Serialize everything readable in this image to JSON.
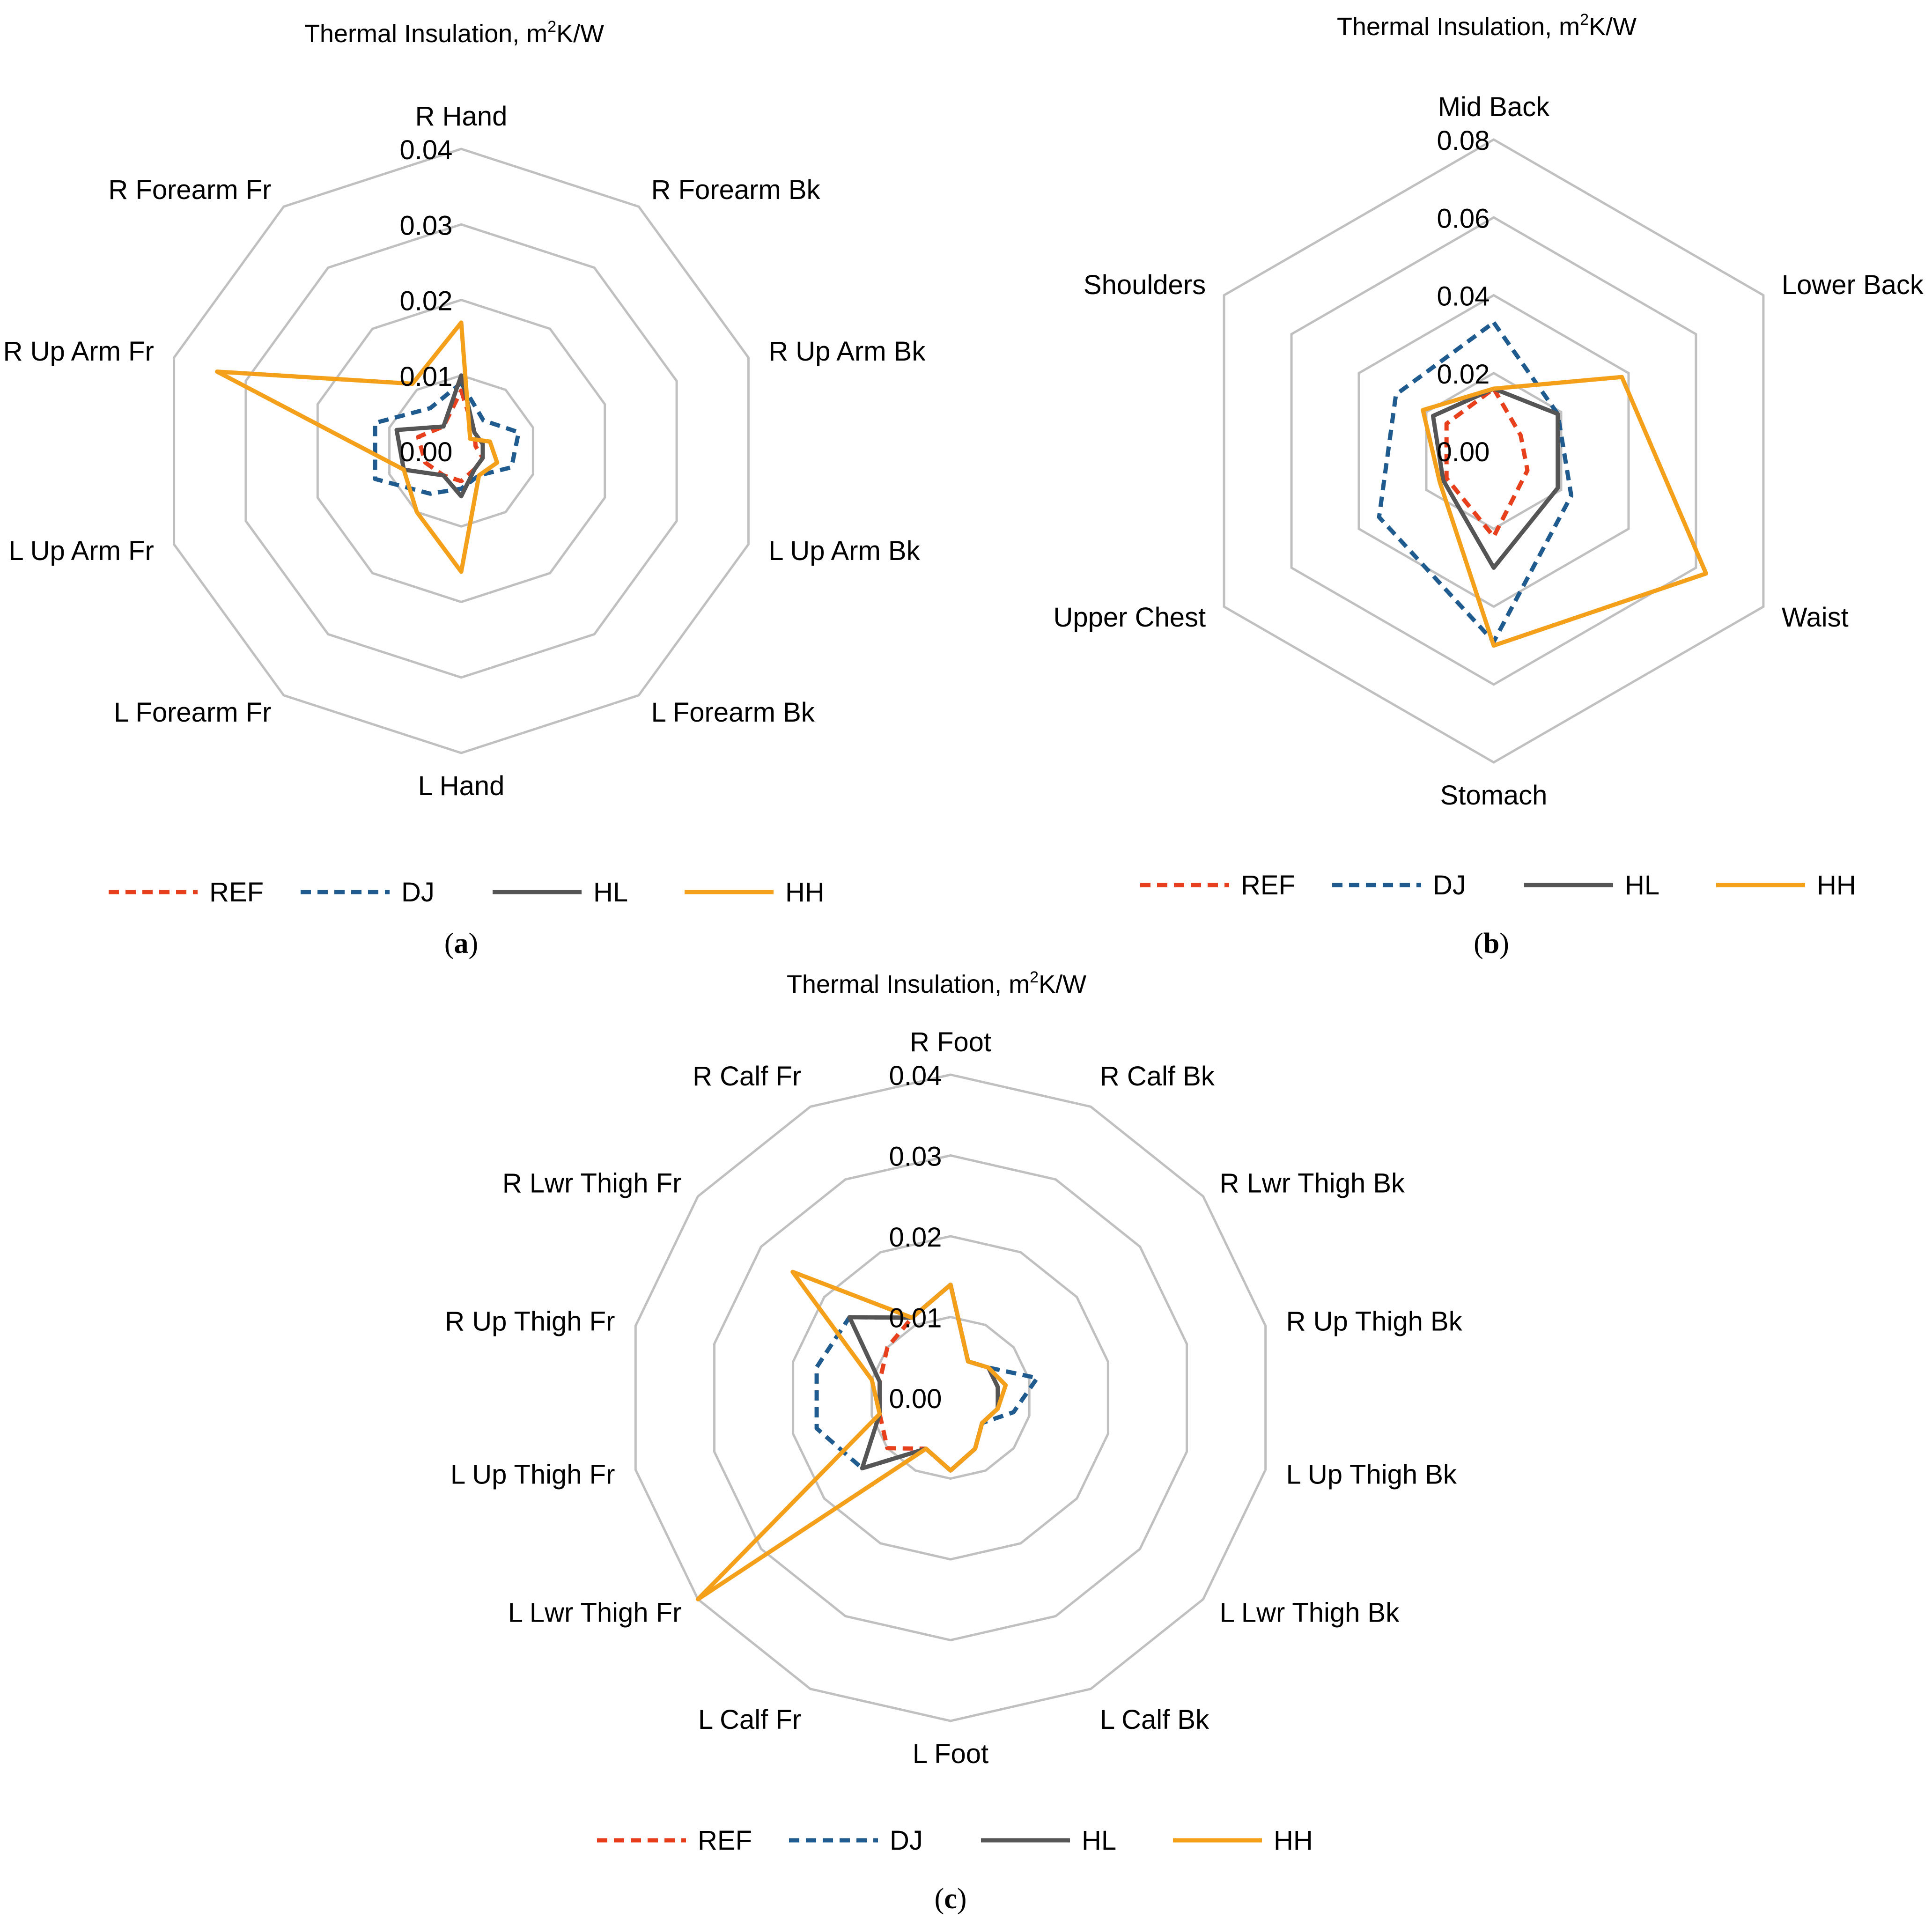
{
  "colors": {
    "REF": "#e8401c",
    "DJ": "#1f5b8e",
    "HL": "#555555",
    "HH": "#f5a01a",
    "grid": "#c0c0c0"
  },
  "chart_data": [
    {
      "type": "radar",
      "panel_label": "a",
      "title": "Thermal Insulation, m",
      "title_sup": "2",
      "title_suffix": "K/W",
      "categories": [
        "R Hand",
        "R Forearm Bk",
        "R Up Arm Bk",
        "L Up Arm Bk",
        "L Forearm Bk",
        "L Hand",
        "L Forearm Fr",
        "L Up Arm Fr",
        "R Up Arm Fr",
        "R Forearm Fr"
      ],
      "rlim": [
        0,
        0.04
      ],
      "ticks": [
        "0.00",
        "0.01",
        "0.02",
        "0.03",
        "0.04"
      ],
      "tick_values": [
        0,
        0.01,
        0.02,
        0.03,
        0.04
      ],
      "grid": true,
      "legend_position": "bottom",
      "series": [
        {
          "name": "REF",
          "style": "dashed",
          "values": [
            0.008,
            0.003,
            0.002,
            0.003,
            0.003,
            0.004,
            0.004,
            0.005,
            0.006,
            0.004
          ]
        },
        {
          "name": "DJ",
          "style": "dashed",
          "values": [
            0.009,
            0.005,
            0.008,
            0.007,
            0.004,
            0.005,
            0.007,
            0.012,
            0.012,
            0.007
          ]
        },
        {
          "name": "HL",
          "style": "solid",
          "values": [
            0.01,
            0.003,
            0.003,
            0.003,
            0.003,
            0.006,
            0.004,
            0.008,
            0.009,
            0.004
          ]
        },
        {
          "name": "HH",
          "style": "solid",
          "values": [
            0.017,
            0.002,
            0.004,
            0.005,
            0.004,
            0.016,
            0.01,
            0.008,
            0.034,
            0.011
          ]
        }
      ]
    },
    {
      "type": "radar",
      "panel_label": "b",
      "title": "Thermal Insulation, m",
      "title_sup": "2",
      "title_suffix": "K/W",
      "categories": [
        "Mid Back",
        "Lower Back",
        "Waist",
        "Stomach",
        "Upper Chest",
        "Shoulders"
      ],
      "rlim": [
        0,
        0.08
      ],
      "ticks": [
        "0.00",
        "0.02",
        "0.04",
        "0.06",
        "0.08"
      ],
      "tick_values": [
        0,
        0.02,
        0.04,
        0.06,
        0.08
      ],
      "grid": true,
      "legend_position": "bottom",
      "series": [
        {
          "name": "REF",
          "style": "dashed",
          "values": [
            0.016,
            0.008,
            0.01,
            0.022,
            0.014,
            0.014
          ]
        },
        {
          "name": "DJ",
          "style": "dashed",
          "values": [
            0.033,
            0.019,
            0.023,
            0.049,
            0.034,
            0.029
          ]
        },
        {
          "name": "HL",
          "style": "solid",
          "values": [
            0.016,
            0.019,
            0.019,
            0.03,
            0.015,
            0.018
          ]
        },
        {
          "name": "HH",
          "style": "solid",
          "values": [
            0.016,
            0.038,
            0.063,
            0.05,
            0.016,
            0.021
          ]
        }
      ]
    },
    {
      "type": "radar",
      "panel_label": "c",
      "title": "Thermal Insulation, m",
      "title_sup": "2",
      "title_suffix": "K/W",
      "categories": [
        "R Foot",
        "R Calf Bk",
        "R Lwr Thigh Bk",
        "R Up Thigh Bk",
        "L Up Thigh Bk",
        "L Lwr Thigh Bk",
        "L Calf Bk",
        "L Foot",
        "L Calf Fr",
        "L Lwr Thigh Fr",
        "L Up Thigh Fr",
        "R Up Thigh Fr",
        "R Lwr Thigh Fr",
        "R Calf Fr"
      ],
      "rlim": [
        0,
        0.04
      ],
      "ticks": [
        "0.00",
        "0.01",
        "0.02",
        "0.03",
        "0.04"
      ],
      "tick_values": [
        0,
        0.01,
        0.02,
        0.03,
        0.04
      ],
      "grid": true,
      "legend_position": "bottom",
      "series": [
        {
          "name": "REF",
          "style": "dashed",
          "values": [
            0.014,
            0.005,
            0.006,
            0.006,
            0.006,
            0.005,
            0.007,
            0.009,
            0.007,
            0.01,
            0.009,
            0.009,
            0.01,
            0.011
          ]
        },
        {
          "name": "DJ",
          "style": "dashed",
          "values": [
            0.014,
            0.005,
            0.006,
            0.011,
            0.008,
            0.005,
            0.007,
            0.009,
            0.007,
            0.014,
            0.017,
            0.017,
            0.016,
            0.011
          ]
        },
        {
          "name": "HL",
          "style": "solid",
          "values": [
            0.014,
            0.005,
            0.006,
            0.006,
            0.006,
            0.005,
            0.007,
            0.009,
            0.007,
            0.014,
            0.009,
            0.009,
            0.016,
            0.011
          ]
        },
        {
          "name": "HH",
          "style": "solid",
          "values": [
            0.014,
            0.005,
            0.006,
            0.007,
            0.006,
            0.005,
            0.007,
            0.009,
            0.007,
            0.04,
            0.009,
            0.01,
            0.025,
            0.011
          ]
        }
      ]
    }
  ]
}
